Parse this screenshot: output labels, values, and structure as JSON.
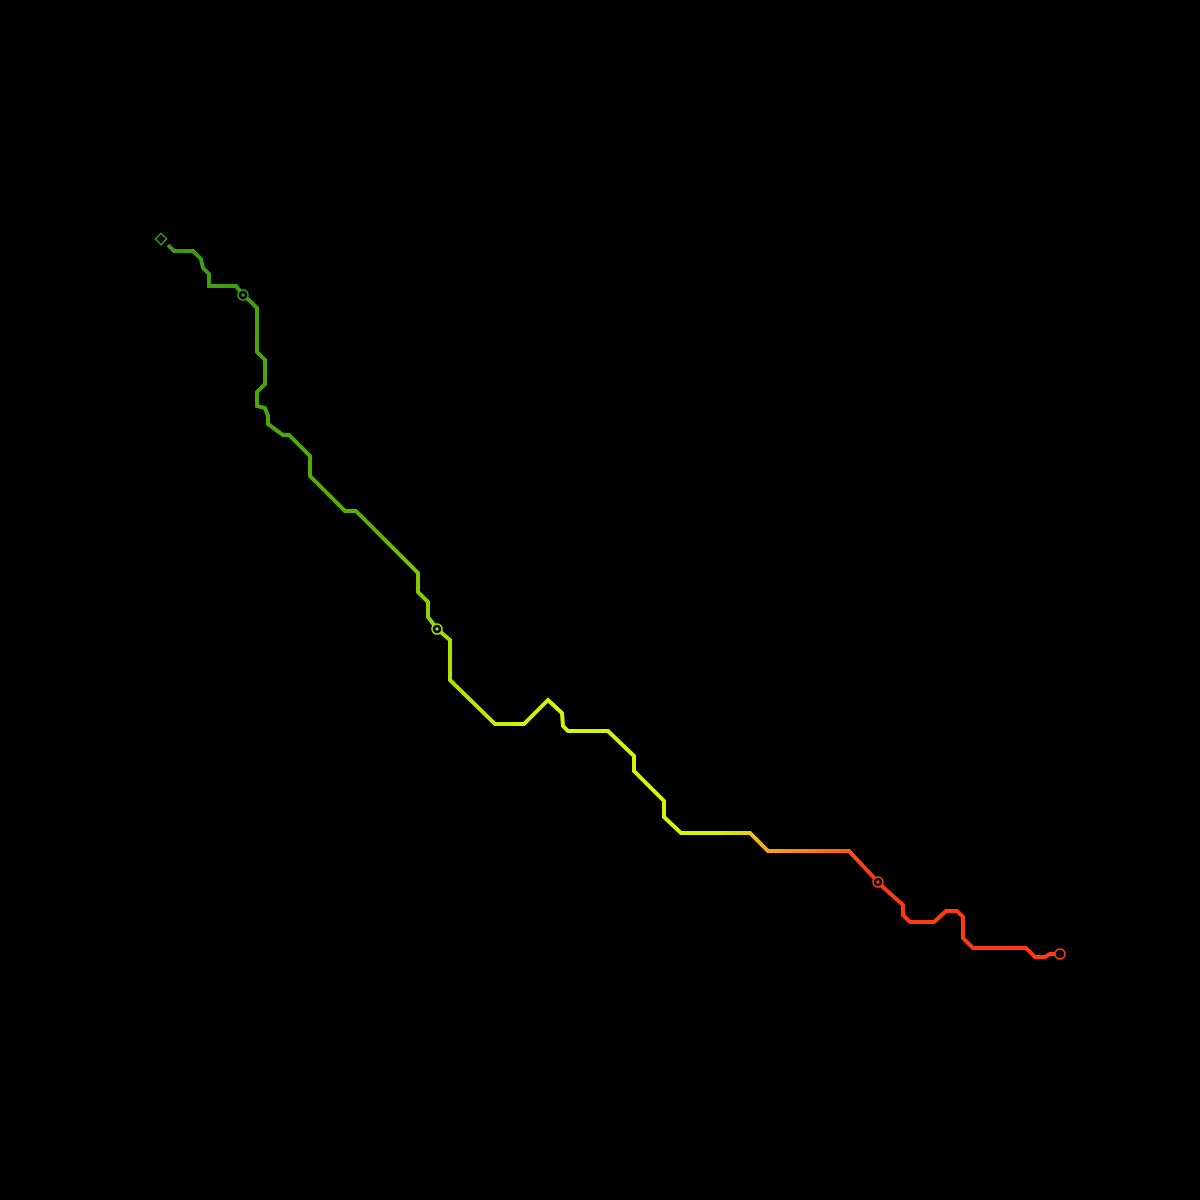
{
  "canvas": {
    "background": "#000000"
  },
  "route": {
    "colors": {
      "start": "#3a9a10",
      "early": "#5cb000",
      "mid_green": "#a8e000",
      "yellow": "#d8f400",
      "orange": "#ff8c1a",
      "red": "#ff3c10"
    },
    "markers": [
      {
        "name": "start-marker",
        "shape": "diamond"
      },
      {
        "name": "waypoint-marker",
        "shape": "circle-dot"
      },
      {
        "name": "waypoint-marker",
        "shape": "circle-dot"
      },
      {
        "name": "waypoint-marker",
        "shape": "circle-dot"
      },
      {
        "name": "end-marker",
        "shape": "circle"
      }
    ]
  }
}
